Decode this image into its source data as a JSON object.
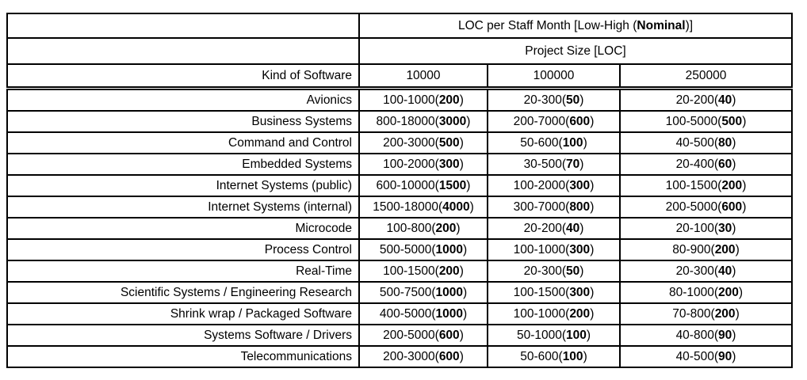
{
  "page": {
    "background": "#ffffff",
    "text_color": "#000000",
    "border_color": "#000000"
  },
  "table": {
    "title": {
      "prefix": "LOC per Staff Month [Low-High (",
      "bold": "Nominal",
      "suffix": ")]"
    },
    "subtitle": "Project Size [LOC]",
    "corner_label": "Kind of Software",
    "sizes": [
      "10000",
      "100000",
      "250000"
    ],
    "rows": [
      {
        "kind": "Avionics",
        "cells": [
          {
            "range": "100-1000",
            "nominal": "200"
          },
          {
            "range": "20-300",
            "nominal": "50"
          },
          {
            "range": "20-200",
            "nominal": "40"
          }
        ]
      },
      {
        "kind": "Business Systems",
        "cells": [
          {
            "range": "800-18000",
            "nominal": "3000"
          },
          {
            "range": "200-7000",
            "nominal": "600"
          },
          {
            "range": "100-5000",
            "nominal": "500"
          }
        ]
      },
      {
        "kind": "Command and Control",
        "cells": [
          {
            "range": "200-3000",
            "nominal": "500"
          },
          {
            "range": "50-600",
            "nominal": "100"
          },
          {
            "range": "40-500",
            "nominal": "80"
          }
        ]
      },
      {
        "kind": "Embedded Systems",
        "cells": [
          {
            "range": "100-2000",
            "nominal": "300"
          },
          {
            "range": "30-500",
            "nominal": "70"
          },
          {
            "range": "20-400",
            "nominal": "60"
          }
        ]
      },
      {
        "kind": "Internet Systems (public)",
        "cells": [
          {
            "range": "600-10000",
            "nominal": "1500"
          },
          {
            "range": "100-2000",
            "nominal": "300"
          },
          {
            "range": "100-1500",
            "nominal": "200"
          }
        ]
      },
      {
        "kind": "Internet Systems (internal)",
        "cells": [
          {
            "range": "1500-18000",
            "nominal": "4000"
          },
          {
            "range": "300-7000",
            "nominal": "800"
          },
          {
            "range": "200-5000",
            "nominal": "600"
          }
        ]
      },
      {
        "kind": "Microcode",
        "cells": [
          {
            "range": "100-800",
            "nominal": "200"
          },
          {
            "range": "20-200",
            "nominal": "40"
          },
          {
            "range": "20-100",
            "nominal": "30"
          }
        ]
      },
      {
        "kind": "Process Control",
        "cells": [
          {
            "range": "500-5000",
            "nominal": "1000"
          },
          {
            "range": "100-1000",
            "nominal": "300"
          },
          {
            "range": "80-900",
            "nominal": "200"
          }
        ]
      },
      {
        "kind": "Real-Time",
        "cells": [
          {
            "range": "100-1500",
            "nominal": "200"
          },
          {
            "range": "20-300",
            "nominal": "50"
          },
          {
            "range": "20-300",
            "nominal": "40"
          }
        ]
      },
      {
        "kind": "Scientific Systems / Engineering Research",
        "cells": [
          {
            "range": "500-7500",
            "nominal": "1000"
          },
          {
            "range": "100-1500",
            "nominal": "300"
          },
          {
            "range": "80-1000",
            "nominal": "200"
          }
        ]
      },
      {
        "kind": "Shrink wrap / Packaged Software",
        "cells": [
          {
            "range": "400-5000",
            "nominal": "1000"
          },
          {
            "range": "100-1000",
            "nominal": "200"
          },
          {
            "range": "70-800",
            "nominal": "200"
          }
        ]
      },
      {
        "kind": "Systems Software / Drivers",
        "cells": [
          {
            "range": "200-5000",
            "nominal": "600"
          },
          {
            "range": "50-1000",
            "nominal": "100"
          },
          {
            "range": "40-800",
            "nominal": "90"
          }
        ]
      },
      {
        "kind": "Telecommunications",
        "cells": [
          {
            "range": "200-3000",
            "nominal": "600"
          },
          {
            "range": "50-600",
            "nominal": "100"
          },
          {
            "range": "40-500",
            "nominal": "90"
          }
        ]
      }
    ]
  }
}
